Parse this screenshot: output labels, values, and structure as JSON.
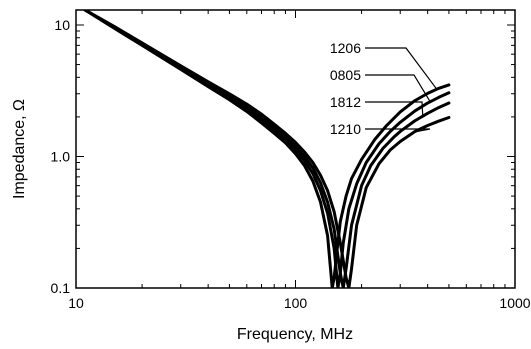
{
  "chart_data": {
    "type": "line",
    "title": "",
    "xlabel": "Frequency, MHz",
    "ylabel": "Impedance, Ω",
    "x_scale": "log",
    "y_scale": "log",
    "xlim": [
      10,
      1000
    ],
    "ylim": [
      0.1,
      13
    ],
    "grid": false,
    "x_ticks": [
      {
        "value": 10,
        "label": "10"
      },
      {
        "value": 100,
        "label": "100"
      },
      {
        "value": 1000,
        "label": "1000"
      }
    ],
    "y_ticks": [
      {
        "value": 0.1,
        "label": "0.1"
      },
      {
        "value": 1.0,
        "label": "1.0"
      },
      {
        "value": 10,
        "label": "10"
      }
    ],
    "series": [
      {
        "name": "1206",
        "x": [
          11,
          15,
          20,
          30,
          40,
          50,
          60,
          70,
          80,
          90,
          100,
          110,
          120,
          130,
          140,
          147,
          150,
          155,
          160,
          170,
          180,
          200,
          230,
          260,
          300,
          350,
          400,
          450,
          500
        ],
        "y": [
          13,
          9.4,
          7.0,
          4.6,
          3.4,
          2.7,
          2.2,
          1.8,
          1.5,
          1.27,
          1.05,
          0.85,
          0.65,
          0.45,
          0.25,
          0.1,
          0.12,
          0.2,
          0.32,
          0.5,
          0.68,
          0.95,
          1.35,
          1.72,
          2.18,
          2.66,
          3.02,
          3.3,
          3.5
        ]
      },
      {
        "name": "0805",
        "x": [
          11,
          15,
          20,
          30,
          40,
          50,
          60,
          70,
          80,
          90,
          100,
          110,
          120,
          130,
          140,
          150,
          156,
          160,
          165,
          175,
          190,
          210,
          240,
          270,
          300,
          350,
          400,
          450,
          500
        ],
        "y": [
          13,
          9.5,
          7.1,
          4.7,
          3.5,
          2.8,
          2.3,
          1.9,
          1.6,
          1.35,
          1.13,
          0.93,
          0.74,
          0.55,
          0.37,
          0.2,
          0.1,
          0.13,
          0.22,
          0.4,
          0.62,
          0.9,
          1.25,
          1.55,
          1.82,
          2.22,
          2.55,
          2.82,
          3.05
        ]
      },
      {
        "name": "1812",
        "x": [
          11,
          15,
          20,
          30,
          40,
          50,
          60,
          70,
          80,
          90,
          100,
          110,
          120,
          130,
          140,
          150,
          160,
          165,
          170,
          180,
          200,
          220,
          250,
          280,
          300,
          350,
          400,
          450,
          500
        ],
        "y": [
          13,
          9.6,
          7.2,
          4.8,
          3.6,
          2.9,
          2.4,
          2.0,
          1.68,
          1.42,
          1.2,
          1.0,
          0.82,
          0.63,
          0.45,
          0.28,
          0.13,
          0.1,
          0.14,
          0.3,
          0.6,
          0.85,
          1.15,
          1.4,
          1.55,
          1.87,
          2.13,
          2.36,
          2.55
        ]
      },
      {
        "name": "1210",
        "x": [
          11,
          15,
          20,
          30,
          40,
          50,
          60,
          70,
          80,
          90,
          100,
          110,
          120,
          130,
          140,
          150,
          160,
          170,
          175,
          180,
          190,
          210,
          240,
          270,
          300,
          350,
          400,
          450,
          500
        ],
        "y": [
          13,
          9.7,
          7.3,
          4.9,
          3.7,
          3.0,
          2.5,
          2.1,
          1.76,
          1.5,
          1.28,
          1.08,
          0.9,
          0.72,
          0.55,
          0.38,
          0.22,
          0.12,
          0.1,
          0.14,
          0.3,
          0.58,
          0.88,
          1.12,
          1.3,
          1.55,
          1.72,
          1.86,
          1.98
        ]
      }
    ],
    "annotations": [
      {
        "label": "1206",
        "series": "1206",
        "point": [
          440,
          3.25
        ]
      },
      {
        "label": "0805",
        "series": "0805",
        "point": [
          410,
          2.62
        ]
      },
      {
        "label": "1812",
        "series": "1812",
        "point": [
          380,
          2.03
        ]
      },
      {
        "label": "1210",
        "series": "1210",
        "point": [
          345,
          1.53
        ]
      }
    ]
  }
}
